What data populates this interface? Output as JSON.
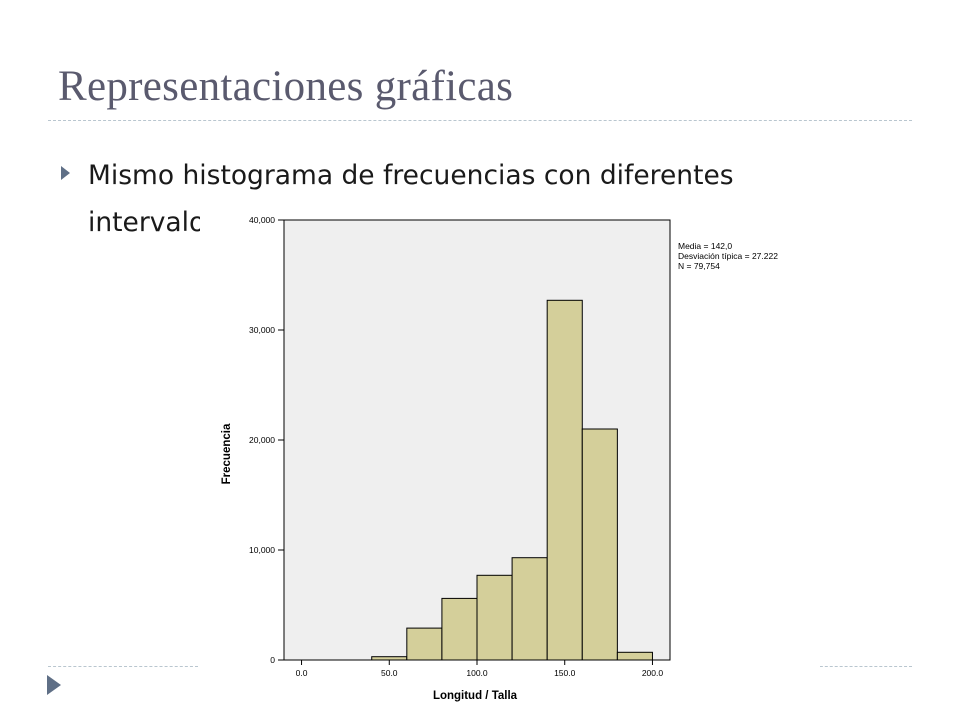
{
  "slide": {
    "title": "Representaciones gráficas",
    "bullet": "Mismo histograma de frecuencias con diferentes intervalos",
    "colors": {
      "title": "#5a5a6e",
      "bullet_marker": "#5f6f86",
      "rule": "#b9c6cf"
    }
  },
  "chart_data": {
    "type": "bar",
    "title": "",
    "xlabel": "Longitud / Talla",
    "ylabel": "Frecuencia",
    "xlim": [
      -10,
      210
    ],
    "ylim": [
      0,
      40000
    ],
    "x_ticks": [
      0,
      50,
      100,
      150,
      200
    ],
    "x_tick_labels": [
      "0.0",
      "50.0",
      "100.0",
      "150.0",
      "200.0"
    ],
    "y_ticks": [
      0,
      10000,
      20000,
      30000,
      40000
    ],
    "y_tick_labels": [
      "0",
      "10,000",
      "20,000",
      "30,000",
      "40,000"
    ],
    "bins": [
      {
        "start": 40,
        "end": 60,
        "value": 300
      },
      {
        "start": 60,
        "end": 80,
        "value": 2900
      },
      {
        "start": 80,
        "end": 100,
        "value": 5600
      },
      {
        "start": 100,
        "end": 120,
        "value": 7700
      },
      {
        "start": 120,
        "end": 140,
        "value": 9300
      },
      {
        "start": 140,
        "end": 160,
        "value": 32700
      },
      {
        "start": 160,
        "end": 180,
        "value": 21000
      },
      {
        "start": 180,
        "end": 200,
        "value": 700
      }
    ],
    "stats": [
      "Media = 142,0",
      "Desviación típica = 27.222",
      "N = 79,754"
    ],
    "grid": false,
    "colors": {
      "bar": "#d4cf9a",
      "plot_bg": "#efefef"
    }
  }
}
